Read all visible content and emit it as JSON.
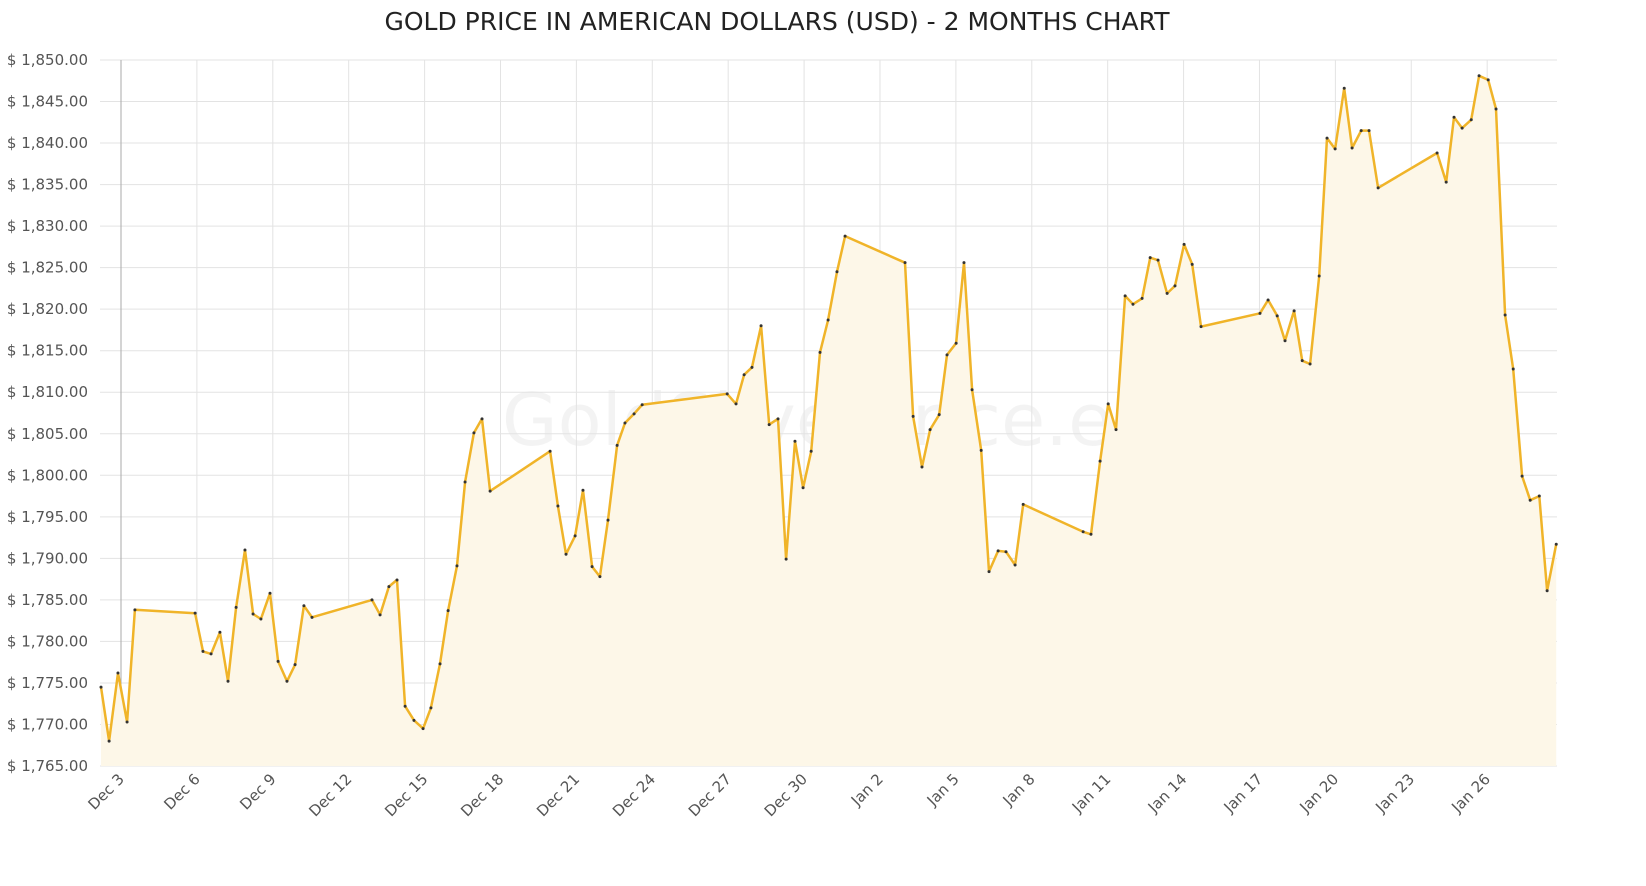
{
  "chart_data": {
    "type": "line",
    "title": "GOLD PRICE IN AMERICAN DOLLARS (USD) - 2 MONTHS CHART",
    "watermark": "GoldSilverPrice.eu",
    "color": "#f0b429",
    "fill_color": "#fdf7e8",
    "grid": true,
    "x": [
      2.21,
      2.53,
      2.88,
      3.24,
      3.55,
      5.93,
      6.24,
      6.56,
      6.91,
      7.23,
      7.55,
      7.9,
      8.22,
      8.53,
      8.89,
      9.21,
      9.56,
      9.88,
      10.23,
      10.55,
      12.92,
      13.24,
      13.59,
      13.91,
      14.23,
      14.58,
      14.94,
      15.25,
      15.61,
      15.93,
      16.28,
      16.6,
      16.95,
      17.27,
      17.59,
      19.96,
      20.27,
      20.59,
      20.95,
      21.26,
      21.62,
      21.93,
      22.25,
      22.61,
      22.92,
      23.28,
      23.6,
      26.96,
      27.31,
      27.63,
      27.94,
      28.3,
      28.62,
      28.97,
      29.29,
      29.64,
      29.96,
      30.28,
      30.63,
      30.95,
      31.3,
      31.62,
      33.99,
      34.31,
      34.66,
      34.98,
      35.34,
      35.65,
      36.01,
      36.32,
      36.64,
      37.0,
      37.31,
      37.67,
      37.98,
      38.34,
      38.66,
      41.03,
      41.34,
      41.7,
      42.02,
      42.33,
      42.69,
      43.0,
      43.36,
      43.68,
      43.99,
      44.35,
      44.66,
      45.02,
      45.34,
      45.69,
      48.02,
      48.34,
      48.7,
      49.01,
      49.37,
      49.69,
      50.0,
      50.36,
      50.67,
      50.99,
      51.35,
      51.66,
      52.02,
      52.33,
      52.69,
      55.02,
      55.38,
      55.69,
      56.01,
      56.37,
      56.68,
      57.04,
      57.35,
      57.71,
      58.03,
      58.38,
      58.7,
      59.06,
      59.37,
      59.73
    ],
    "values": [
      1774.5,
      1768.0,
      1776.2,
      1770.3,
      1783.8,
      1783.4,
      1778.8,
      1778.5,
      1781.1,
      1775.2,
      1784.1,
      1791.0,
      1783.3,
      1782.7,
      1785.8,
      1777.6,
      1775.2,
      1777.2,
      1784.3,
      1782.9,
      1785.0,
      1783.2,
      1786.6,
      1787.4,
      1772.2,
      1770.5,
      1769.5,
      1772.0,
      1777.3,
      1783.7,
      1789.1,
      1799.2,
      1805.1,
      1806.8,
      1798.1,
      1802.9,
      1796.3,
      1790.5,
      1792.7,
      1798.2,
      1789.0,
      1787.8,
      1794.6,
      1803.6,
      1806.3,
      1807.4,
      1808.5,
      1809.8,
      1808.6,
      1812.1,
      1813.0,
      1818.0,
      1806.1,
      1806.8,
      1789.9,
      1804.1,
      1798.5,
      1802.9,
      1814.8,
      1818.7,
      1824.5,
      1828.8,
      1825.6,
      1807.1,
      1801.0,
      1805.5,
      1807.3,
      1814.5,
      1815.9,
      1825.6,
      1810.3,
      1803.0,
      1788.4,
      1790.9,
      1790.8,
      1789.2,
      1796.5,
      1793.2,
      1792.9,
      1801.7,
      1808.6,
      1805.5,
      1821.6,
      1820.6,
      1821.3,
      1826.2,
      1825.9,
      1821.9,
      1822.8,
      1827.8,
      1825.4,
      1817.9,
      1819.5,
      1821.1,
      1819.2,
      1816.2,
      1819.8,
      1813.8,
      1813.4,
      1824.0,
      1840.6,
      1839.3,
      1846.6,
      1839.4,
      1841.5,
      1841.5,
      1834.6,
      1838.8,
      1835.3,
      1843.1,
      1841.8,
      1842.8,
      1848.1,
      1847.6,
      1844.1,
      1819.3,
      1812.8,
      1799.9,
      1797.0,
      1797.5,
      1786.1,
      1791.7
    ],
    "xlim": [
      2.17,
      59.76
    ],
    "xticks": [
      {
        "value": 3,
        "label": "Dec 3"
      },
      {
        "value": 6,
        "label": "Dec 6"
      },
      {
        "value": 9,
        "label": "Dec 9"
      },
      {
        "value": 12,
        "label": "Dec 12"
      },
      {
        "value": 15,
        "label": "Dec 15"
      },
      {
        "value": 18,
        "label": "Dec 18"
      },
      {
        "value": 21,
        "label": "Dec 21"
      },
      {
        "value": 24,
        "label": "Dec 24"
      },
      {
        "value": 27,
        "label": "Dec 27"
      },
      {
        "value": 30,
        "label": "Dec 30"
      },
      {
        "value": 33,
        "label": "Jan 2"
      },
      {
        "value": 36,
        "label": "Jan 5"
      },
      {
        "value": 39,
        "label": "Jan 8"
      },
      {
        "value": 42,
        "label": "Jan 11"
      },
      {
        "value": 45,
        "label": "Jan 14"
      },
      {
        "value": 48,
        "label": "Jan 17"
      },
      {
        "value": 51,
        "label": "Jan 20"
      },
      {
        "value": 54,
        "label": "Jan 23"
      },
      {
        "value": 57,
        "label": "Jan 26"
      }
    ],
    "ylim": [
      1765,
      1850
    ],
    "yticks": [
      {
        "value": 1765,
        "label": "$ 1,765.00"
      },
      {
        "value": 1770,
        "label": "$ 1,770.00"
      },
      {
        "value": 1775,
        "label": "$ 1,775.00"
      },
      {
        "value": 1780,
        "label": "$ 1,780.00"
      },
      {
        "value": 1785,
        "label": "$ 1,785.00"
      },
      {
        "value": 1790,
        "label": "$ 1,790.00"
      },
      {
        "value": 1795,
        "label": "$ 1,795.00"
      },
      {
        "value": 1800,
        "label": "$ 1,800.00"
      },
      {
        "value": 1805,
        "label": "$ 1,805.00"
      },
      {
        "value": 1810,
        "label": "$ 1,810.00"
      },
      {
        "value": 1815,
        "label": "$ 1,815.00"
      },
      {
        "value": 1820,
        "label": "$ 1,820.00"
      },
      {
        "value": 1825,
        "label": "$ 1,825.00"
      },
      {
        "value": 1830,
        "label": "$ 1,830.00"
      },
      {
        "value": 1835,
        "label": "$ 1,835.00"
      },
      {
        "value": 1840,
        "label": "$ 1,840.00"
      },
      {
        "value": 1845,
        "label": "$ 1,845.00"
      },
      {
        "value": 1850,
        "label": "$ 1,850.00"
      }
    ]
  }
}
